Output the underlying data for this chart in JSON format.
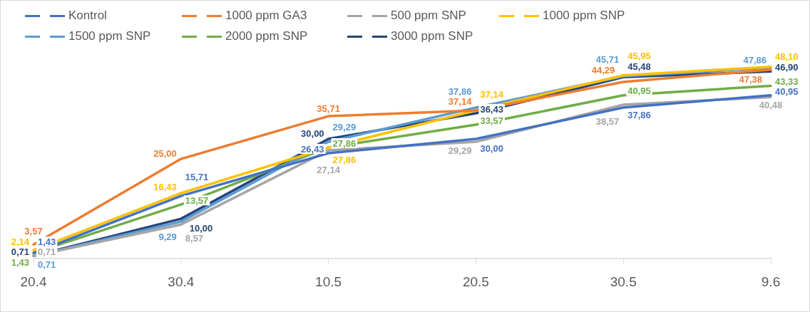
{
  "chart_data": {
    "type": "line",
    "categories": [
      "20.4",
      "30.4",
      "10.5",
      "20.5",
      "30.5",
      "9.6"
    ],
    "series": [
      {
        "name": "Kontrol",
        "color": "#4472c4",
        "values": [
          1.43,
          15.71,
          26.43,
          30.0,
          37.86,
          40.95
        ],
        "value_labels": [
          "1,43",
          "15,71",
          "26,43",
          "30,00",
          "37,86",
          "40,95"
        ]
      },
      {
        "name": "1000 ppm GA3",
        "color": "#ed7d31",
        "values": [
          3.57,
          25.0,
          35.71,
          37.14,
          44.29,
          47.38
        ],
        "value_labels": [
          "3,57",
          "25,00",
          "35,71",
          "37,14",
          "44,29",
          "47,38"
        ]
      },
      {
        "name": "500 ppm SNP",
        "color": "#a5a5a5",
        "values": [
          0.71,
          8.57,
          27.14,
          29.29,
          38.57,
          40.48
        ],
        "value_labels": [
          "0,71",
          "8,57",
          "27,14",
          "29,29",
          "38,57",
          "40,48"
        ]
      },
      {
        "name": "1000 ppm SNP",
        "color": "#ffc000",
        "values": [
          2.14,
          16.43,
          27.86,
          37.14,
          45.95,
          48.1
        ],
        "value_labels": [
          "2,14",
          "16,43",
          "27,86",
          "37,14",
          "45,95",
          "48,10"
        ]
      },
      {
        "name": "1500 ppm SNP",
        "color": "#5b9bd5",
        "values": [
          0.71,
          9.29,
          29.29,
          37.86,
          45.71,
          47.86
        ],
        "value_labels": [
          "0,71",
          "9,29",
          "29,29",
          "37,86",
          "45,71",
          "47,86"
        ]
      },
      {
        "name": "2000 ppm SNP",
        "color": "#70ad47",
        "values": [
          1.43,
          13.57,
          27.86,
          33.57,
          40.95,
          43.33
        ],
        "value_labels": [
          "1,43",
          "13,57",
          "27,86",
          "33,57",
          "40,95",
          "43,33"
        ]
      },
      {
        "name": "3000 ppm SNP",
        "color": "#264478",
        "values": [
          0.71,
          10.0,
          30.0,
          36.43,
          45.48,
          46.9
        ],
        "value_labels": [
          "0,71",
          "10,00",
          "30,00",
          "36,43",
          "45,48",
          "46,90"
        ]
      }
    ],
    "legend": "top"
  }
}
